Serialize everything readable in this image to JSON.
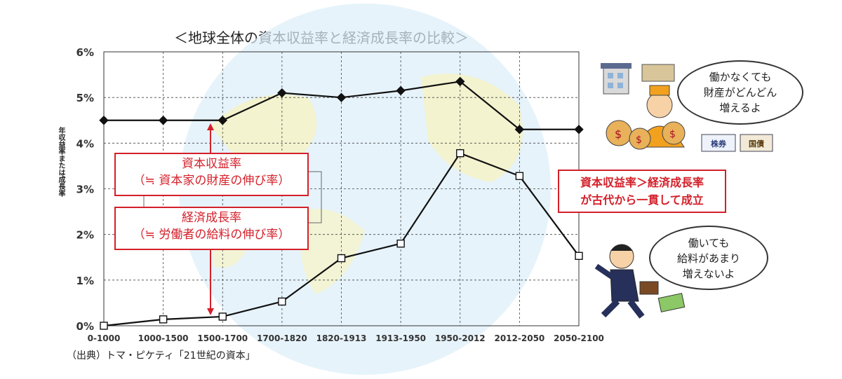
{
  "title": "＜地球全体の資本収益率と経済成長率の比較＞",
  "source": "（出典）トマ・ピケティ「21世紀の資本」",
  "callouts": {
    "capital_line1": "資本収益率",
    "capital_line2": "（≒ 資本家の財産の伸び率）",
    "growth_line1": "経済成長率",
    "growth_line2": "（≒ 労働者の給料の伸び率）"
  },
  "conclusion": {
    "line1": "資本収益率＞経済成長率",
    "line2": "が古代から一貫して成立"
  },
  "bubbles": {
    "rich": [
      "働かなくても",
      "財産がどんどん",
      "増えるよ"
    ],
    "worker": [
      "働いても",
      "給料があまり",
      "増えないよ"
    ]
  },
  "badges": {
    "stock": "株券",
    "bond": "国債"
  },
  "chart_data": {
    "type": "line",
    "categories": [
      "0-1000",
      "1000-1500",
      "1500-1700",
      "1700-1820",
      "1820-1913",
      "1913-1950",
      "1950-2012",
      "2012-2050",
      "2050-2100"
    ],
    "series": [
      {
        "name": "資本収益率",
        "values": [
          4.5,
          4.5,
          4.5,
          5.1,
          5.0,
          5.15,
          5.35,
          4.3,
          4.3
        ],
        "marker": "diamond",
        "color": "#111111"
      },
      {
        "name": "経済成長率",
        "values": [
          0.0,
          0.14,
          0.2,
          0.53,
          1.48,
          1.8,
          3.78,
          3.28,
          1.53
        ],
        "marker": "square",
        "color": "#111111"
      }
    ],
    "yticks": [
      "0%",
      "1%",
      "2%",
      "3%",
      "4%",
      "5%",
      "6%"
    ],
    "ylim": [
      0,
      6
    ],
    "ylabel": "年収益率または成長率",
    "xlabel": "",
    "grid": true,
    "accent_color": "#d4202a"
  }
}
